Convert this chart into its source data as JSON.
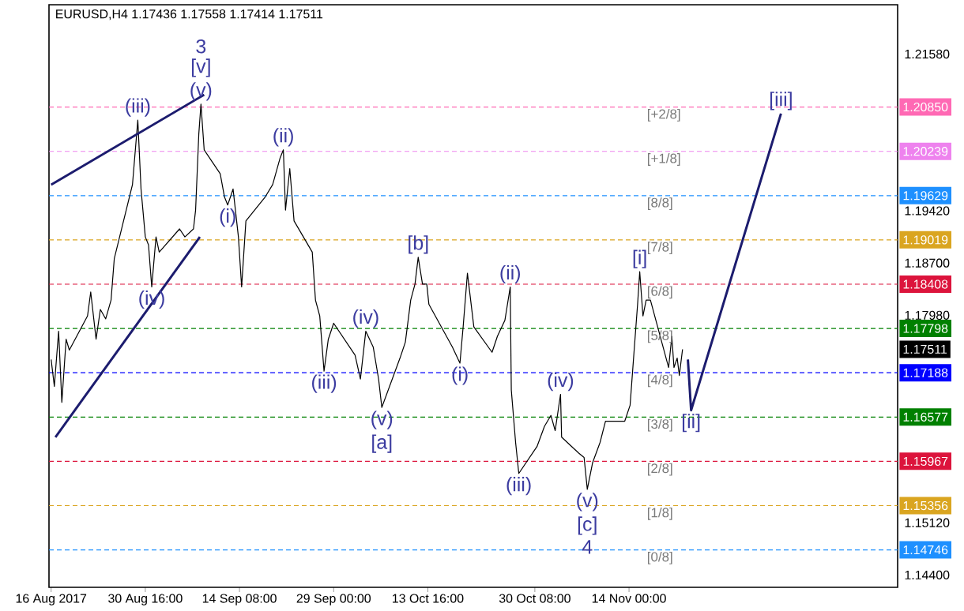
{
  "chart_data": {
    "type": "line",
    "title": "EURUSD,H4  1.17436 1.17558 1.17414 1.17511",
    "xlim": [
      "2017-08-15T16:00",
      "2017-12-25T20:00"
    ],
    "ylim": [
      1.1423,
      1.2226
    ],
    "xticks": [
      {
        "value": "2017-08-16T00:00",
        "label": "16 Aug 2017"
      },
      {
        "value": "2017-08-30T16:00",
        "label": "30 Aug 16:00"
      },
      {
        "value": "2017-09-14T08:00",
        "label": "14 Sep 08:00"
      },
      {
        "value": "2017-09-29T00:00",
        "label": "29 Sep 00:00"
      },
      {
        "value": "2017-10-13T16:00",
        "label": "13 Oct 16:00"
      },
      {
        "value": "2017-10-30T08:00",
        "label": "30 Oct 08:00"
      },
      {
        "value": "2017-11-14T00:00",
        "label": "14 Nov 00:00"
      }
    ],
    "yticks": [
      {
        "value": 1.2158,
        "label": "1.21580"
      },
      {
        "value": 1.1942,
        "label": "1.19420"
      },
      {
        "value": 1.187,
        "label": "1.18700"
      },
      {
        "value": 1.1798,
        "label": "1.17980"
      },
      {
        "value": 1.17511,
        "label": "1.17511"
      },
      {
        "value": 1.1512,
        "label": "1.15120"
      },
      {
        "value": 1.144,
        "label": "1.14400"
      }
    ],
    "series": [
      {
        "color": "#000000",
        "x": [
          "2017-08-16T00:00",
          "2017-08-16T12:00",
          "2017-08-17T04:00",
          "2017-08-17T16:00",
          "2017-08-18T08:00",
          "2017-08-18T20:00",
          "2017-08-21T16:00",
          "2017-08-22T04:00",
          "2017-08-23T00:00",
          "2017-08-23T16:00",
          "2017-08-24T12:00",
          "2017-08-25T08:00",
          "2017-08-25T20:00",
          "2017-08-28T16:00",
          "2017-08-29T12:00",
          "2017-08-30T00:00",
          "2017-08-30T16:00",
          "2017-08-31T04:00",
          "2017-08-31T16:00",
          "2017-09-01T08:00",
          "2017-09-01T20:00",
          "2017-09-05T00:00",
          "2017-09-05T20:00",
          "2017-09-07T04:00",
          "2017-09-07T12:00",
          "2017-09-08T00:00",
          "2017-09-08T08:00",
          "2017-09-08T20:00",
          "2017-09-11T08:00",
          "2017-09-12T00:00",
          "2017-09-12T12:00",
          "2017-09-13T08:00",
          "2017-09-14T04:00",
          "2017-09-14T16:00",
          "2017-09-15T08:00",
          "2017-09-18T08:00",
          "2017-09-19T12:00",
          "2017-09-20T16:00",
          "2017-09-21T04:00",
          "2017-09-21T12:00",
          "2017-09-22T04:00",
          "2017-09-22T20:00",
          "2017-09-25T16:00",
          "2017-09-26T04:00",
          "2017-09-26T20:00",
          "2017-09-27T12:00",
          "2017-09-28T04:00",
          "2017-09-29T00:00",
          "2017-10-02T08:00",
          "2017-10-03T04:00",
          "2017-10-04T00:00",
          "2017-10-05T04:00",
          "2017-10-06T00:00",
          "2017-10-06T12:00",
          "2017-10-09T08:00",
          "2017-10-10T04:00",
          "2017-10-11T00:00",
          "2017-10-11T16:00",
          "2017-10-12T04:00",
          "2017-10-12T20:00",
          "2017-10-13T12:00",
          "2017-10-13T20:00",
          "2017-10-17T12:00",
          "2017-10-18T16:00",
          "2017-10-19T04:00",
          "2017-10-19T20:00",
          "2017-10-20T20:00",
          "2017-10-23T16:00",
          "2017-10-24T12:00",
          "2017-10-25T16:00",
          "2017-10-26T12:00",
          "2017-10-26T16:00",
          "2017-10-27T08:00",
          "2017-10-27T20:00",
          "2017-10-30T16:00",
          "2017-10-31T20:00",
          "2017-11-01T20:00",
          "2017-11-02T12:00",
          "2017-11-03T08:00",
          "2017-11-03T12:00",
          "2017-11-06T04:00",
          "2017-11-07T00:00",
          "2017-11-07T12:00",
          "2017-11-08T08:00",
          "2017-11-09T12:00",
          "2017-11-10T08:00",
          "2017-11-13T08:00",
          "2017-11-14T04:00",
          "2017-11-14T20:00",
          "2017-11-15T08:00",
          "2017-11-15T16:00",
          "2017-11-16T04:00",
          "2017-11-16T16:00",
          "2017-11-17T08:00",
          "2017-11-20T04:00",
          "2017-11-20T16:00",
          "2017-11-21T00:00",
          "2017-11-21T12:00",
          "2017-11-21T20:00",
          "2017-11-22T08:00"
        ],
        "values": [
          1.1737,
          1.17,
          1.1776,
          1.1678,
          1.1765,
          1.175,
          1.1797,
          1.183,
          1.1765,
          1.1806,
          1.1793,
          1.1819,
          1.1876,
          1.1978,
          1.2067,
          1.1972,
          1.1906,
          1.1895,
          1.1837,
          1.1906,
          1.1885,
          1.1917,
          1.1906,
          1.1917,
          1.1943,
          1.2048,
          1.2089,
          1.2026,
          1.1993,
          1.1961,
          1.195,
          1.1972,
          1.1906,
          1.1837,
          1.1928,
          1.1961,
          1.1978,
          1.2015,
          1.2026,
          1.1943,
          1.2,
          1.1928,
          1.1885,
          1.1819,
          1.1797,
          1.1721,
          1.1765,
          1.1787,
          1.1743,
          1.171,
          1.1776,
          1.1754,
          1.171,
          1.1671,
          1.1739,
          1.1761,
          1.1819,
          1.1841,
          1.1878,
          1.1841,
          1.1841,
          1.1813,
          1.1754,
          1.1732,
          1.1782,
          1.1856,
          1.1782,
          1.1747,
          1.1769,
          1.1791,
          1.1837,
          1.1695,
          1.1623,
          1.158,
          1.1617,
          1.1645,
          1.166,
          1.1639,
          1.1689,
          1.163,
          1.1608,
          1.1602,
          1.1558,
          1.1595,
          1.1623,
          1.1652,
          1.1652,
          1.1674,
          1.1754,
          1.1813,
          1.1858,
          1.1797,
          1.1819,
          1.1819,
          1.1726,
          1.1769,
          1.1726,
          1.1739,
          1.1715,
          1.17511
        ]
      },
      {
        "color": "#1c1c6e",
        "x": [
          "2017-11-23T04:00",
          "2017-11-23T16:00",
          "2017-12-07T16:00"
        ],
        "values": [
          1.1737,
          1.1667,
          1.2076
        ]
      },
      {
        "color": "#1c1c6e",
        "x": [
          "2017-08-16T00:00",
          "2017-09-08T20:00"
        ],
        "values": [
          1.1978,
          1.2102
        ]
      },
      {
        "color": "#1c1c6e",
        "x": [
          "2017-08-16T16:00",
          "2017-09-08T04:00"
        ],
        "values": [
          1.163,
          1.1906
        ]
      }
    ],
    "annotations": [
      {
        "text": "(iii)",
        "x": "2017-08-29T12:00",
        "y": 1.2067
      },
      {
        "text": "(v)",
        "x": "2017-09-08T08:00",
        "y": 1.2089
      },
      {
        "text": "[v]",
        "x": "2017-09-08T08:00",
        "y": 1.2089
      },
      {
        "text": "3",
        "x": "2017-09-08T08:00",
        "y": 1.2089
      },
      {
        "text": "(iv)",
        "x": "2017-08-31T16:00",
        "y": 1.1837
      },
      {
        "text": "(i)",
        "x": "2017-09-12T12:00",
        "y": 1.195
      },
      {
        "text": "(ii)",
        "x": "2017-09-21T04:00",
        "y": 1.2026
      },
      {
        "text": "(iii)",
        "x": "2017-09-27T12:00",
        "y": 1.1721
      },
      {
        "text": "(iv)",
        "x": "2017-10-04T00:00",
        "y": 1.1776
      },
      {
        "text": "(v)",
        "x": "2017-10-06T12:00",
        "y": 1.1671
      },
      {
        "text": "[a]",
        "x": "2017-10-06T12:00",
        "y": 1.1671
      },
      {
        "text": "[b]",
        "x": "2017-10-12T04:00",
        "y": 1.1878
      },
      {
        "text": "(i)",
        "x": "2017-10-18T16:00",
        "y": 1.1732
      },
      {
        "text": "(ii)",
        "x": "2017-10-26T12:00",
        "y": 1.1837
      },
      {
        "text": "(iii)",
        "x": "2017-10-27T20:00",
        "y": 1.158
      },
      {
        "text": "(iv)",
        "x": "2017-11-03T08:00",
        "y": 1.1689
      },
      {
        "text": "(v)",
        "x": "2017-11-07T12:00",
        "y": 1.1558
      },
      {
        "text": "[c]",
        "x": "2017-11-07T12:00",
        "y": 1.1558
      },
      {
        "text": "4",
        "x": "2017-11-07T12:00",
        "y": 1.1558
      },
      {
        "text": "[i]",
        "x": "2017-11-15T16:00",
        "y": 1.1858
      },
      {
        "text": "[ii]",
        "x": "2017-11-23T16:00",
        "y": 1.1667
      },
      {
        "text": "[iii]",
        "x": "2017-12-07T16:00",
        "y": 1.2076
      },
      {
        "text": "[+2/8]",
        "x": "2017-11-16T12:00",
        "y": 1.2085
      },
      {
        "text": "[+1/8]",
        "x": "2017-11-16T12:00",
        "y": 1.20239
      },
      {
        "text": "[8/8]",
        "x": "2017-11-16T12:00",
        "y": 1.19629
      },
      {
        "text": "[7/8]",
        "x": "2017-11-16T12:00",
        "y": 1.19019
      },
      {
        "text": "[6/8]",
        "x": "2017-11-16T12:00",
        "y": 1.18408
      },
      {
        "text": "[5/8]",
        "x": "2017-11-16T12:00",
        "y": 1.17798
      },
      {
        "text": "[4/8]",
        "x": "2017-11-16T12:00",
        "y": 1.17188
      },
      {
        "text": "[3/8]",
        "x": "2017-11-16T12:00",
        "y": 1.16577
      },
      {
        "text": "[2/8]",
        "x": "2017-11-16T12:00",
        "y": 1.15967
      },
      {
        "text": "[1/8]",
        "x": "2017-11-16T12:00",
        "y": 1.15356
      },
      {
        "text": "[0/8]",
        "x": "2017-11-16T12:00",
        "y": 1.14746
      }
    ],
    "ref_lines": [
      {
        "axis": "y",
        "value": 1.2085,
        "label": "1.20850",
        "color": "#ff69b4",
        "line_style": "dashed"
      },
      {
        "axis": "y",
        "value": 1.20239,
        "label": "1.20239",
        "color": "#ee82ee",
        "line_style": "dashed"
      },
      {
        "axis": "y",
        "value": 1.19629,
        "label": "1.19629",
        "color": "#1e90ff",
        "line_style": "dashed"
      },
      {
        "axis": "y",
        "value": 1.19019,
        "label": "1.19019",
        "color": "#daa520",
        "line_style": "dashed"
      },
      {
        "axis": "y",
        "value": 1.18408,
        "label": "1.18408",
        "color": "#dc143c",
        "line_style": "dashed"
      },
      {
        "axis": "y",
        "value": 1.17798,
        "label": "1.17798",
        "color": "#008000",
        "line_style": "dashed"
      },
      {
        "axis": "y",
        "value": 1.17188,
        "label": "1.17188",
        "color": "#0000ff",
        "line_style": "dashed"
      },
      {
        "axis": "y",
        "value": 1.16577,
        "label": "1.16577",
        "color": "#008000",
        "line_style": "dashed"
      },
      {
        "axis": "y",
        "value": 1.15967,
        "label": "1.15967",
        "color": "#dc143c",
        "line_style": "dashed"
      },
      {
        "axis": "y",
        "value": 1.15356,
        "label": "1.15356",
        "color": "#daa520",
        "line_style": "dashed"
      },
      {
        "axis": "y",
        "value": 1.14746,
        "label": "1.14746",
        "color": "#1e90ff",
        "line_style": "dashed"
      }
    ]
  }
}
